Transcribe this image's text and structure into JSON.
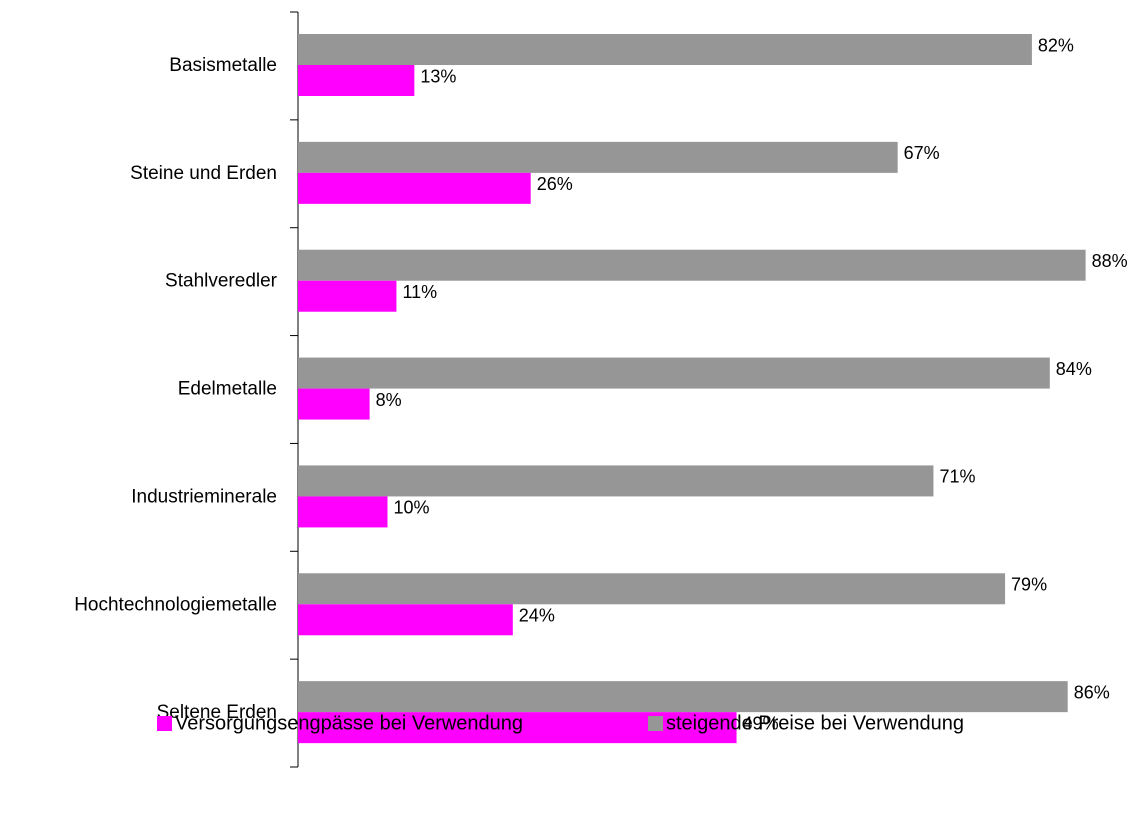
{
  "chart_data": {
    "type": "barh",
    "categories": [
      "Basismetalle",
      "Steine und Erden",
      "Stahlveredler",
      "Edelmetalle",
      "Industrieminerale",
      "Hochtechnologiemetalle",
      "Seltene Erden"
    ],
    "series": [
      {
        "name": "Versorgungsengpässe bei Verwendung",
        "color": "#ff00ff",
        "values": [
          13,
          26,
          11,
          8,
          10,
          24,
          49
        ],
        "value_labels": [
          "13%",
          "26%",
          "11%",
          "8%",
          "10%",
          "24%",
          "49%"
        ]
      },
      {
        "name": "steigende Preise bei Verwendung",
        "color": "#969696",
        "values": [
          82,
          67,
          88,
          84,
          71,
          79,
          86
        ],
        "value_labels": [
          "82%",
          "67%",
          "88%",
          "84%",
          "71%",
          "79%",
          "86%"
        ]
      }
    ],
    "legend": "bottom"
  }
}
